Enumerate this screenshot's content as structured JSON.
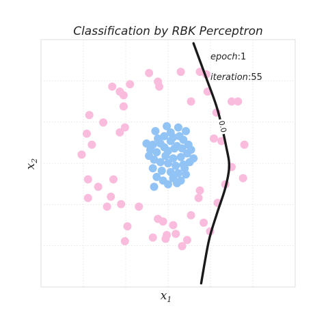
{
  "chart_data": {
    "type": "scatter",
    "title": "Classification by RBK Perceptron",
    "xlabel": "x",
    "xlabel_sub": "1",
    "ylabel": "x",
    "ylabel_sub": "2",
    "annotations": [
      {
        "name": "epoch",
        "value": "1"
      },
      {
        "name": "iteration",
        "value": "55"
      }
    ],
    "xlim": [
      -1.0,
      1.0
    ],
    "ylim": [
      -1.0,
      1.0
    ],
    "grid": true,
    "ticks_shown": false,
    "decision_boundary": {
      "label": "0.0",
      "color": "#1a1a1a",
      "points": [
        [
          0.2,
          0.97
        ],
        [
          0.3,
          0.69
        ],
        [
          0.39,
          0.43
        ],
        [
          0.46,
          0.12
        ],
        [
          0.48,
          -0.03
        ],
        [
          0.45,
          -0.2
        ],
        [
          0.38,
          -0.42
        ],
        [
          0.32,
          -0.63
        ],
        [
          0.26,
          -0.97
        ]
      ]
    },
    "series": [
      {
        "color": "#f9bcdc",
        "points": [
          [
            -0.15,
            0.73
          ],
          [
            0.1,
            0.74
          ],
          [
            -0.08,
            0.66
          ],
          [
            0.25,
            0.74
          ],
          [
            0.3,
            0.72
          ],
          [
            -0.3,
            0.64
          ],
          [
            -0.44,
            0.62
          ],
          [
            -0.38,
            0.58
          ],
          [
            -0.35,
            0.55
          ],
          [
            -0.07,
            0.62
          ],
          [
            0.31,
            0.58
          ],
          [
            0.18,
            0.5
          ],
          [
            -0.35,
            0.46
          ],
          [
            0.5,
            0.5
          ],
          [
            0.55,
            0.5
          ],
          [
            -0.62,
            0.39
          ],
          [
            -0.51,
            0.33
          ],
          [
            0.38,
            0.41
          ],
          [
            -0.34,
            0.29
          ],
          [
            -0.38,
            0.25
          ],
          [
            -0.64,
            0.24
          ],
          [
            -0.6,
            0.15
          ],
          [
            0.36,
            0.2
          ],
          [
            0.42,
            0.18
          ],
          [
            0.6,
            0.15
          ],
          [
            -0.68,
            0.07
          ],
          [
            0.5,
            -0.03
          ],
          [
            -0.63,
            -0.13
          ],
          [
            -0.55,
            -0.19
          ],
          [
            -0.43,
            -0.13
          ],
          [
            0.59,
            -0.12
          ],
          [
            0.45,
            -0.17
          ],
          [
            0.25,
            -0.22
          ],
          [
            0.24,
            -0.28
          ],
          [
            -0.45,
            -0.27
          ],
          [
            -0.63,
            -0.28
          ],
          [
            0.39,
            -0.32
          ],
          [
            -0.37,
            -0.33
          ],
          [
            -0.48,
            -0.35
          ],
          [
            -0.23,
            -0.35
          ],
          [
            0.18,
            -0.42
          ],
          [
            -0.08,
            -0.45
          ],
          [
            -0.04,
            -0.47
          ],
          [
            0.04,
            -0.5
          ],
          [
            0.28,
            -0.48
          ],
          [
            -0.32,
            -0.51
          ],
          [
            -0.01,
            -0.58
          ],
          [
            0.06,
            -0.57
          ],
          [
            0.15,
            -0.62
          ],
          [
            0.11,
            -0.67
          ],
          [
            -0.02,
            -0.61
          ],
          [
            -0.12,
            -0.6
          ],
          [
            0.33,
            -0.55
          ],
          [
            -0.34,
            -0.63
          ]
        ]
      },
      {
        "color": "#91c3f5",
        "points": [
          [
            -0.1,
            0.26
          ],
          [
            -0.12,
            0.15
          ],
          [
            -0.03,
            0.22
          ],
          [
            0.02,
            0.25
          ],
          [
            0.08,
            0.29
          ],
          [
            0.12,
            0.19
          ],
          [
            0.14,
            0.26
          ],
          [
            -0.01,
            0.3
          ],
          [
            0.04,
            0.21
          ],
          [
            0.07,
            0.14
          ],
          [
            -0.06,
            0.16
          ],
          [
            -0.17,
            0.16
          ],
          [
            0.0,
            0.1
          ],
          [
            -0.02,
            0.06
          ],
          [
            0.04,
            0.04
          ],
          [
            0.1,
            0.05
          ],
          [
            0.15,
            0.08
          ],
          [
            0.18,
            0.11
          ],
          [
            -0.09,
            0.09
          ],
          [
            -0.11,
            0.03
          ],
          [
            -0.06,
            0.01
          ],
          [
            0.0,
            0.0
          ],
          [
            0.06,
            -0.02
          ],
          [
            0.12,
            -0.01
          ],
          [
            0.17,
            0.01
          ],
          [
            0.2,
            0.04
          ],
          [
            -0.15,
            0.06
          ],
          [
            -0.12,
            -0.04
          ],
          [
            -0.05,
            -0.06
          ],
          [
            0.02,
            -0.07
          ],
          [
            0.08,
            -0.08
          ],
          [
            0.14,
            -0.09
          ],
          [
            -0.09,
            -0.11
          ],
          [
            -0.04,
            -0.14
          ],
          [
            0.1,
            -0.14
          ],
          [
            0.04,
            -0.12
          ],
          [
            -0.11,
            -0.19
          ],
          [
            0.0,
            -0.17
          ],
          [
            0.07,
            -0.16
          ],
          [
            -0.03,
            0.13
          ],
          [
            0.05,
            0.12
          ],
          [
            0.11,
            0.12
          ],
          [
            -0.08,
            0.2
          ],
          [
            0.02,
            0.18
          ],
          [
            0.09,
            0.22
          ],
          [
            -0.14,
            0.11
          ],
          [
            0.16,
            0.15
          ],
          [
            0.13,
            -0.04
          ]
        ]
      }
    ]
  }
}
